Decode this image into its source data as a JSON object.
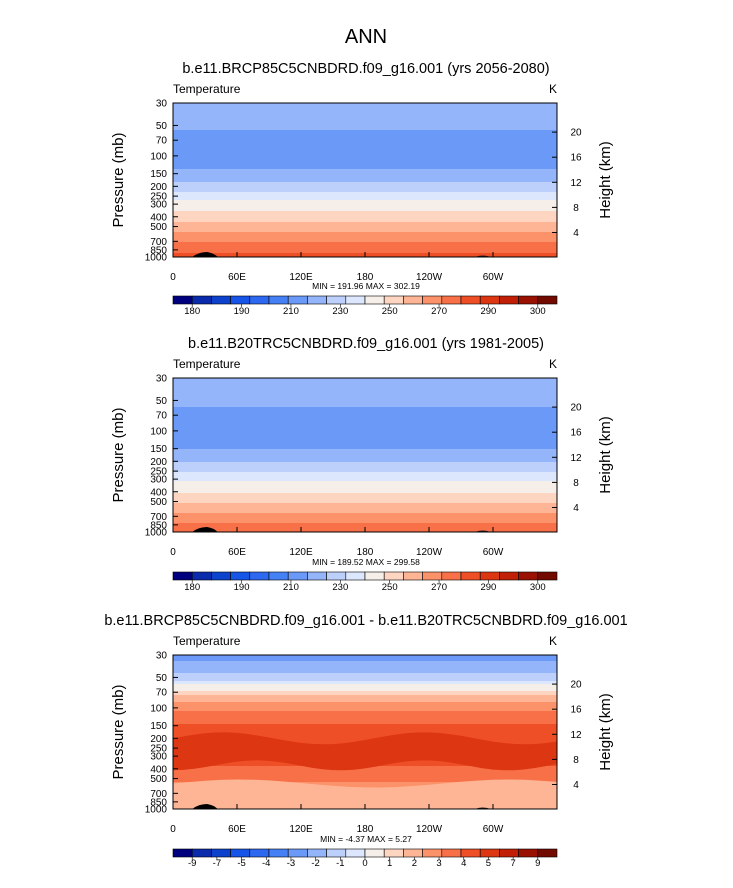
{
  "figure": {
    "title": "ANN",
    "colors": {
      "abs": [
        "#00007f",
        "#0a2bab",
        "#0c42cc",
        "#1754e8",
        "#2d68f0",
        "#4680f5",
        "#6a99f8",
        "#95b5fa",
        "#bcd0fb",
        "#dce6fd",
        "#f6eee8",
        "#fdd5c1",
        "#fdb596",
        "#fc926a",
        "#f87048",
        "#ee4f26",
        "#dd3613",
        "#c22006",
        "#9a1102",
        "#720a00"
      ],
      "diff": [
        "#00007f",
        "#0a2bab",
        "#0c42cc",
        "#1754e8",
        "#2d68f0",
        "#4680f5",
        "#6a99f8",
        "#95b5fa",
        "#bcd0fb",
        "#dce6fd",
        "#f6eee8",
        "#fdd5c1",
        "#fdb596",
        "#fc926a",
        "#f87048",
        "#ee4f26",
        "#dd3613",
        "#c22006",
        "#9a1102",
        "#720a00"
      ]
    }
  },
  "chart_data": [
    {
      "type": "heatmap",
      "id": "panel1",
      "title": "b.e11.BRCP85C5CNBDRD.f09_g16.001 (yrs 2056-2080)",
      "left_label": "Temperature",
      "right_label": "K",
      "ylabel": "Pressure (mb)",
      "y2label": "Height (km)",
      "x_ticks": [
        "0",
        "60E",
        "120E",
        "180",
        "120W",
        "60W"
      ],
      "x_tick_values": [
        0,
        60,
        120,
        180,
        240,
        300
      ],
      "xlim": [
        0,
        360
      ],
      "y_ticks": [
        "30",
        "50",
        "70",
        "100",
        "150",
        "200",
        "250",
        "300",
        "400",
        "500",
        "700",
        "850",
        "1000"
      ],
      "y_tick_values": [
        30,
        50,
        70,
        100,
        150,
        200,
        250,
        300,
        400,
        500,
        700,
        850,
        1000
      ],
      "ylim": [
        30,
        1000
      ],
      "y2_ticks": [
        "20",
        "16",
        "12",
        "8",
        "4"
      ],
      "y2_tick_values": [
        20,
        16,
        12,
        8,
        4
      ],
      "min_max_text": "MIN = 191.96  MAX = 302.19",
      "colorbar_labels": [
        "180",
        "190",
        "210",
        "230",
        "250",
        "270",
        "290",
        "300"
      ],
      "levels": [
        170,
        175,
        180,
        185,
        190,
        200,
        210,
        220,
        230,
        240,
        250,
        260,
        270,
        280,
        290,
        295,
        300,
        305,
        310
      ],
      "profile": {
        "pressure": [
          30,
          50,
          70,
          100,
          130,
          150,
          175,
          200,
          225,
          250,
          275,
          300,
          350,
          400,
          450,
          500,
          600,
          700,
          850,
          925,
          1000
        ],
        "value": [
          214,
          213,
          204,
          205,
          208,
          214,
          219,
          224,
          229,
          235,
          241,
          245,
          250,
          255,
          260,
          265,
          272,
          279,
          287,
          291,
          295
        ]
      }
    },
    {
      "type": "heatmap",
      "id": "panel2",
      "title": "b.e11.B20TRC5CNBDRD.f09_g16.001 (yrs 1981-2005)",
      "left_label": "Temperature",
      "right_label": "K",
      "ylabel": "Pressure (mb)",
      "y2label": "Height (km)",
      "x_ticks": [
        "0",
        "60E",
        "120E",
        "180",
        "120W",
        "60W"
      ],
      "x_tick_values": [
        0,
        60,
        120,
        180,
        240,
        300
      ],
      "xlim": [
        0,
        360
      ],
      "y_ticks": [
        "30",
        "50",
        "70",
        "100",
        "150",
        "200",
        "250",
        "300",
        "400",
        "500",
        "700",
        "850",
        "1000"
      ],
      "y_tick_values": [
        30,
        50,
        70,
        100,
        150,
        200,
        250,
        300,
        400,
        500,
        700,
        850,
        1000
      ],
      "ylim": [
        30,
        1000
      ],
      "y2_ticks": [
        "20",
        "16",
        "12",
        "8",
        "4"
      ],
      "y2_tick_values": [
        20,
        16,
        12,
        8,
        4
      ],
      "min_max_text": "MIN = 189.52  MAX = 299.58",
      "colorbar_labels": [
        "180",
        "190",
        "210",
        "230",
        "250",
        "270",
        "290",
        "300"
      ],
      "levels": [
        170,
        175,
        180,
        185,
        190,
        200,
        210,
        220,
        230,
        240,
        250,
        260,
        270,
        280,
        290,
        295,
        300,
        305,
        310
      ],
      "profile": {
        "pressure": [
          30,
          50,
          70,
          100,
          130,
          150,
          175,
          200,
          225,
          250,
          275,
          300,
          350,
          400,
          450,
          500,
          600,
          700,
          850,
          925,
          1000
        ],
        "value": [
          216,
          214,
          205,
          204,
          206,
          210,
          215,
          219,
          224,
          229,
          234,
          238,
          244,
          249,
          254,
          259,
          266,
          273,
          282,
          286,
          290
        ]
      }
    },
    {
      "type": "heatmap",
      "id": "panel3",
      "title": "b.e11.BRCP85C5CNBDRD.f09_g16.001 - b.e11.B20TRC5CNBDRD.f09_g16.001",
      "left_label": "Temperature",
      "right_label": "K",
      "ylabel": "Pressure (mb)",
      "y2label": "Height (km)",
      "x_ticks": [
        "0",
        "60E",
        "120E",
        "180",
        "120W",
        "60W"
      ],
      "x_tick_values": [
        0,
        60,
        120,
        180,
        240,
        300
      ],
      "xlim": [
        0,
        360
      ],
      "y_ticks": [
        "30",
        "50",
        "70",
        "100",
        "150",
        "200",
        "250",
        "300",
        "400",
        "500",
        "700",
        "850",
        "1000"
      ],
      "y_tick_values": [
        30,
        50,
        70,
        100,
        150,
        200,
        250,
        300,
        400,
        500,
        700,
        850,
        1000
      ],
      "ylim": [
        30,
        1000
      ],
      "y2_ticks": [
        "20",
        "16",
        "12",
        "8",
        "4"
      ],
      "y2_tick_values": [
        20,
        16,
        12,
        8,
        4
      ],
      "min_max_text": "MIN = -4.37  MAX =  5.27",
      "colorbar_labels": [
        "-9",
        "-7",
        "-5",
        "-4",
        "-3",
        "-2",
        "-1",
        "0",
        "1",
        "2",
        "3",
        "4",
        "5",
        "7",
        "9"
      ],
      "levels": [
        -11,
        -10,
        -9,
        -7,
        -5,
        -4,
        -3,
        -2,
        -1,
        -0.5,
        0.5,
        1,
        2,
        3,
        4,
        5,
        7,
        9,
        10
      ],
      "profile": {
        "pressure": [
          30,
          40,
          50,
          60,
          70,
          85,
          100,
          130,
          150,
          200,
          250,
          300,
          350,
          400,
          500,
          600,
          700,
          850,
          1000
        ],
        "value": [
          -3.5,
          -2.5,
          -1.5,
          -0.3,
          0.6,
          1.8,
          2.8,
          3.6,
          4.1,
          4.6,
          5.2,
          4.8,
          4.2,
          3.8,
          3.2,
          2.7,
          2.4,
          2.2,
          2.0
        ]
      }
    }
  ]
}
